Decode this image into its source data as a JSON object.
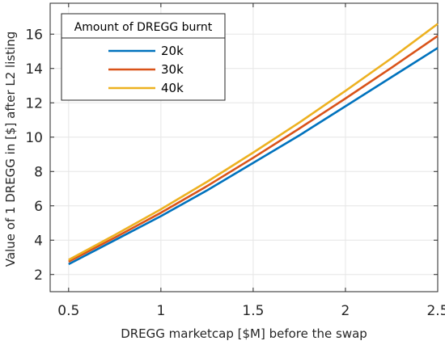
{
  "chart_data": {
    "type": "line",
    "xlabel": "DREGG marketcap [$M] before the swap",
    "ylabel": "Value of 1 DREGG in [$] after L2 listing",
    "xlim": [
      0.4,
      2.5
    ],
    "ylim": [
      1,
      17.8
    ],
    "x_ticks": [
      "0.5",
      "1",
      "1.5",
      "2",
      "2.5"
    ],
    "y_ticks": [
      "2",
      "4",
      "6",
      "8",
      "10",
      "12",
      "14",
      "16"
    ],
    "grid": true,
    "legend": {
      "title": "Amount of DREGG burnt",
      "placement": "top-left"
    },
    "x": [
      0.5,
      0.75,
      1.0,
      1.25,
      1.5,
      1.75,
      2.0,
      2.25,
      2.5
    ],
    "series": [
      {
        "name": "20k",
        "color": "#0072BD",
        "values": [
          2.6,
          4.0,
          5.4,
          6.9,
          8.5,
          10.1,
          11.8,
          13.5,
          15.2
        ]
      },
      {
        "name": "30k",
        "color": "#D95319",
        "values": [
          2.75,
          4.15,
          5.6,
          7.15,
          8.8,
          10.5,
          12.25,
          14.05,
          15.9
        ]
      },
      {
        "name": "40k",
        "color": "#EDB120",
        "values": [
          2.85,
          4.3,
          5.8,
          7.4,
          9.1,
          10.85,
          12.7,
          14.6,
          16.6
        ]
      }
    ]
  }
}
